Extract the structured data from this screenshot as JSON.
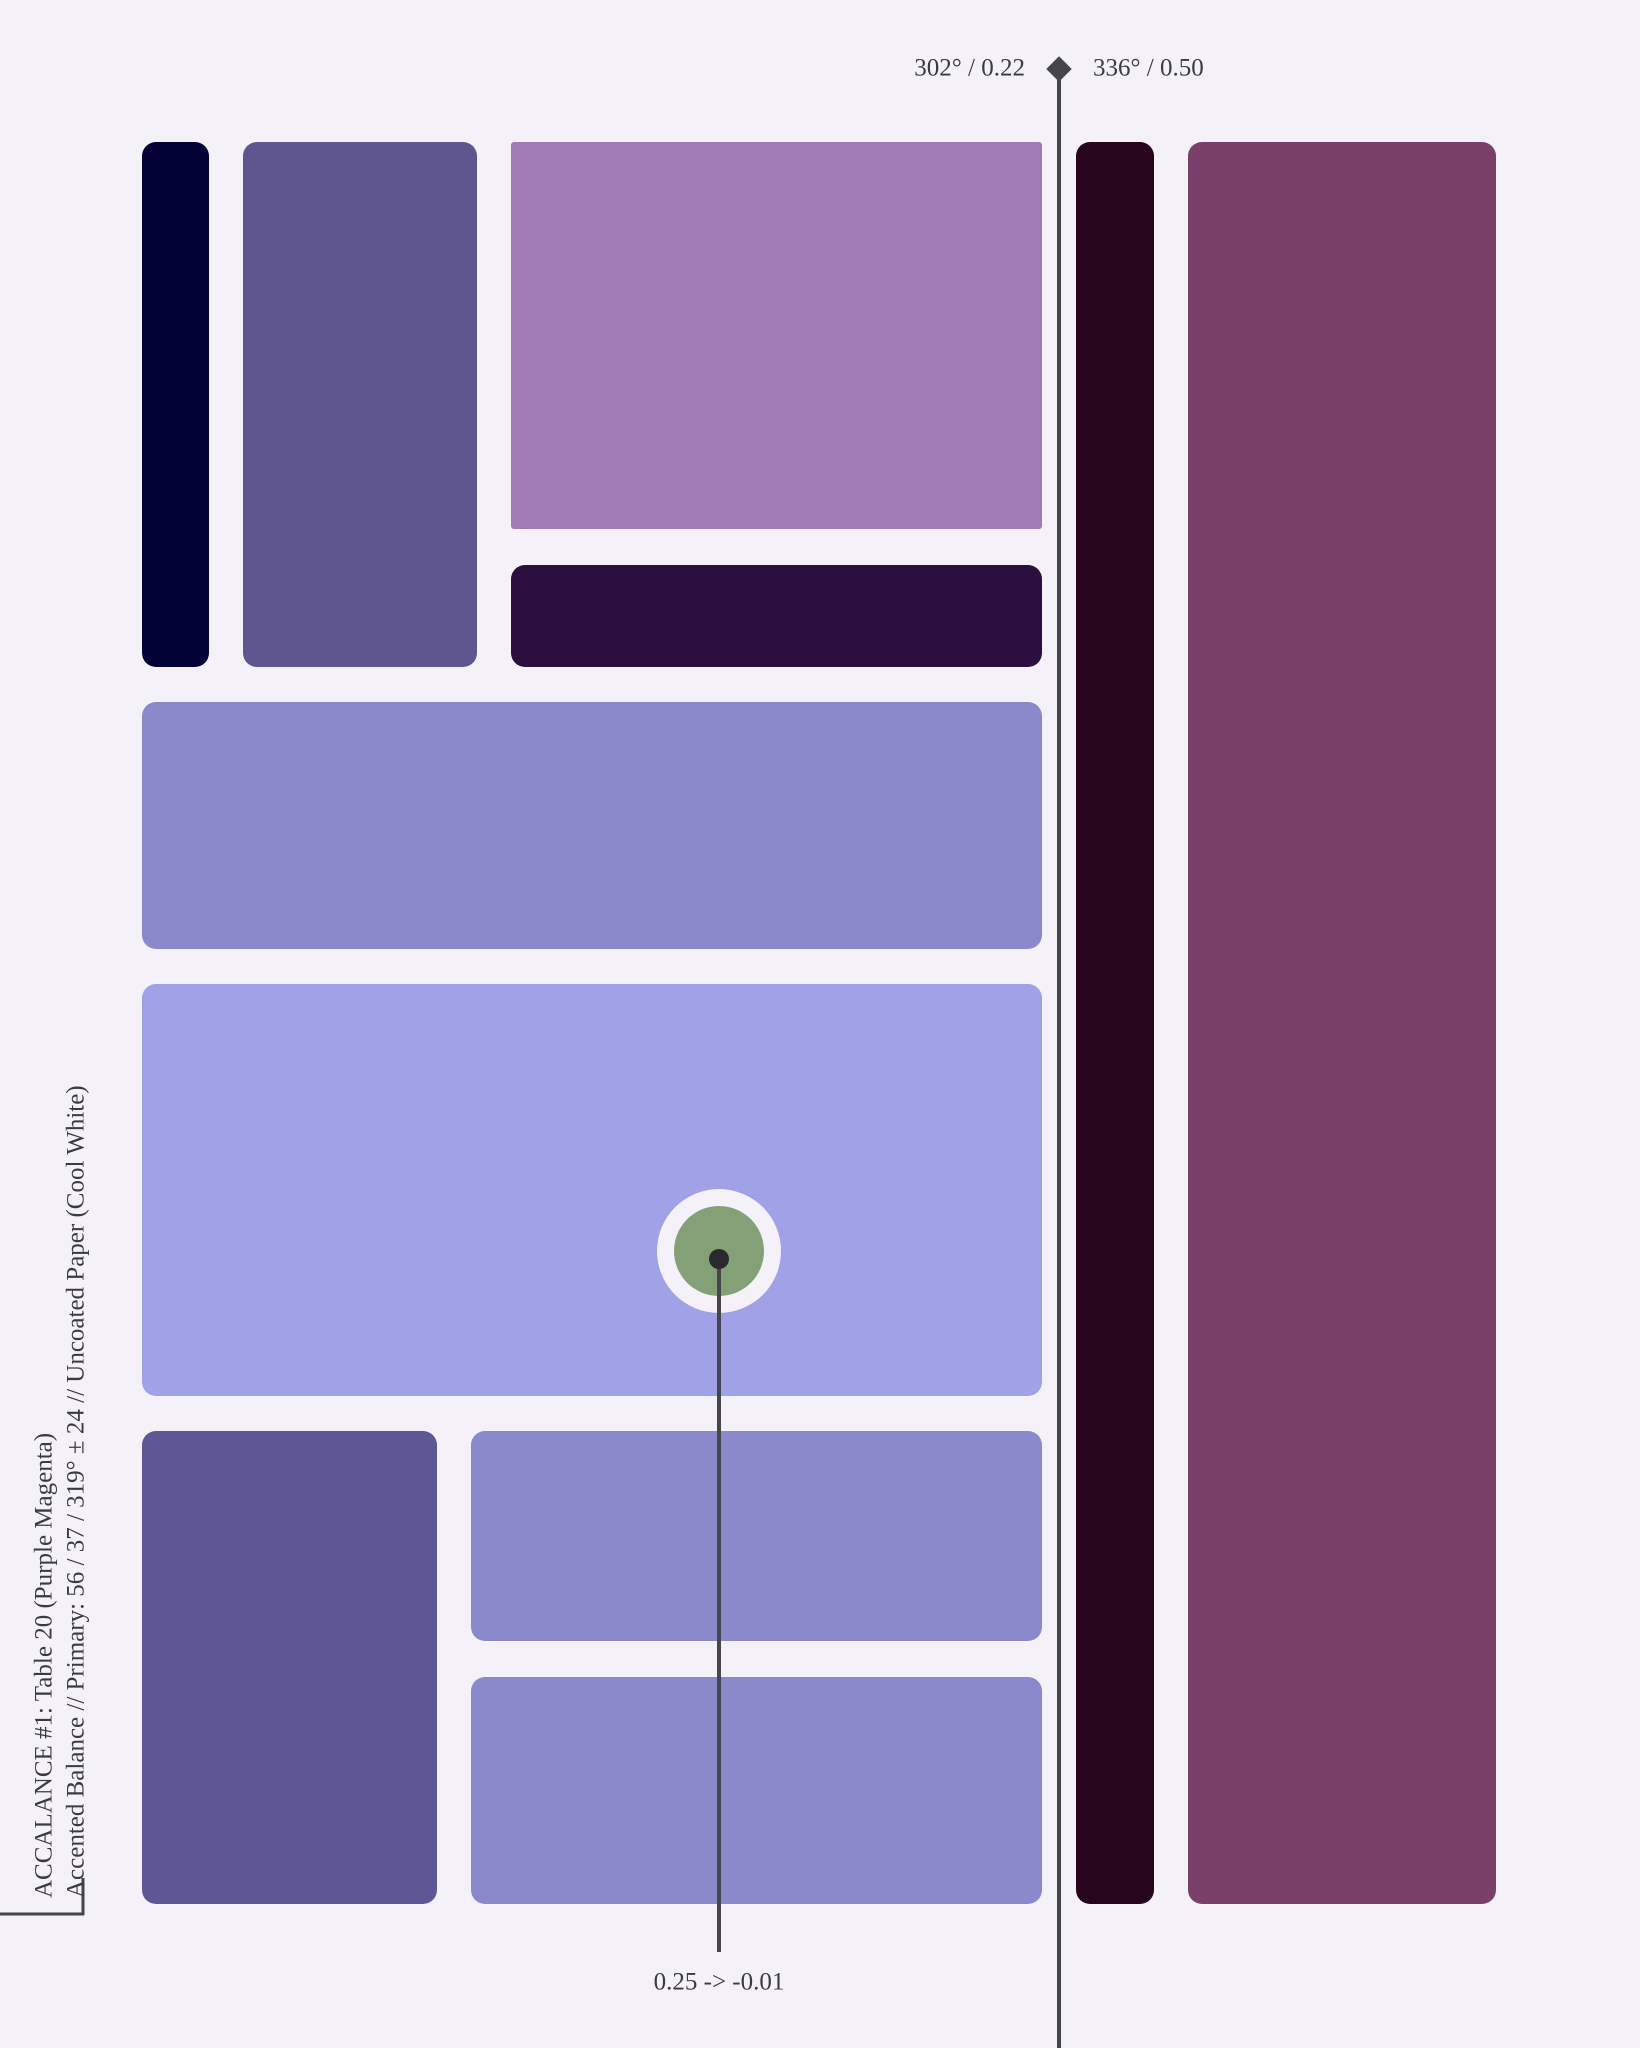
{
  "header": {
    "left_label": "302° / 0.22",
    "right_label": "336° / 0.50"
  },
  "caption": {
    "line1": "ACCALANCE #1: Table 20 (Purple Magenta)",
    "line2": "Accented Balance // Primary: 56 / 37 / 319° ± 24 // Uncoated Paper (Cool White)"
  },
  "marker": {
    "label": "0.25 -> -0.01"
  }
}
